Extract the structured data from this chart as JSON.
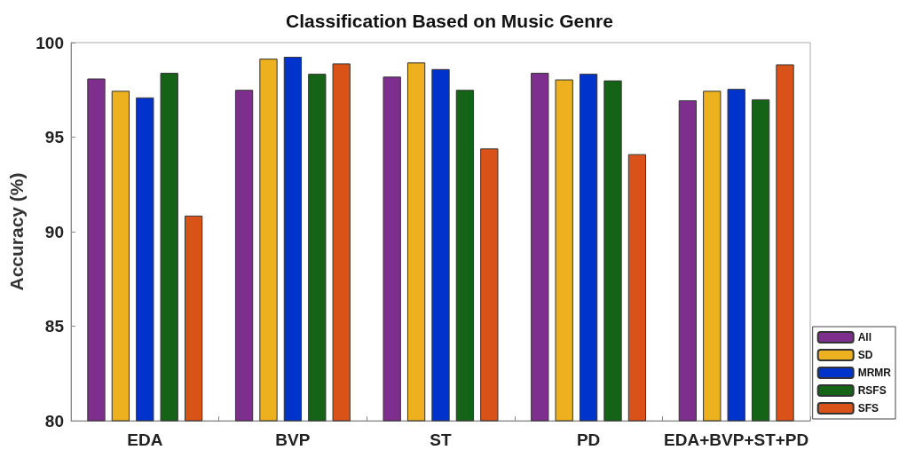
{
  "chart_data": {
    "type": "bar",
    "title": "Classification Based on Music Genre",
    "ylabel": "Accuracy (%)",
    "categories": [
      "EDA",
      "BVP",
      "ST",
      "PD",
      "EDA+BVP+ST+PD"
    ],
    "series": [
      {
        "name": "All",
        "color": "#7e2f8e",
        "values": [
          98.1,
          97.5,
          98.2,
          98.4,
          96.95
        ]
      },
      {
        "name": "SD",
        "color": "#edb120",
        "values": [
          97.45,
          99.15,
          98.95,
          98.05,
          97.45
        ]
      },
      {
        "name": "MRMR",
        "color": "#0033cc",
        "values": [
          97.1,
          99.25,
          98.6,
          98.35,
          97.55
        ]
      },
      {
        "name": "RSFS",
        "color": "#156317",
        "values": [
          98.4,
          98.35,
          97.5,
          98.0,
          97.0
        ]
      },
      {
        "name": "SFS",
        "color": "#d95319",
        "values": [
          90.85,
          98.9,
          94.4,
          94.1,
          98.85
        ]
      }
    ],
    "ylim": [
      80,
      100
    ],
    "yticks": [
      80,
      85,
      90,
      95,
      100
    ],
    "grid": false,
    "legend": "bottom right"
  }
}
